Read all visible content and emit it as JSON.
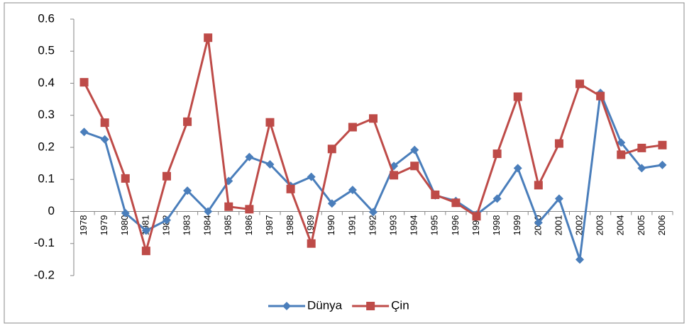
{
  "chart_data": {
    "type": "line",
    "categories": [
      "1978",
      "1979",
      "1980",
      "1981",
      "1982",
      "1983",
      "1984",
      "1985",
      "1986",
      "1987",
      "1988",
      "1989",
      "1990",
      "1991",
      "1992",
      "1993",
      "1994",
      "1995",
      "1996",
      "1997",
      "1998",
      "1999",
      "2000",
      "2001",
      "2002",
      "2003",
      "2004",
      "2005",
      "2006"
    ],
    "series": [
      {
        "name": "Dünya",
        "color": "#4a7ebb",
        "marker": "diamond",
        "values": [
          0.248,
          0.225,
          -0.005,
          -0.06,
          -0.027,
          0.065,
          0.0,
          0.095,
          0.17,
          0.147,
          0.08,
          0.108,
          0.025,
          0.067,
          -0.002,
          0.142,
          0.192,
          0.05,
          0.033,
          -0.01,
          0.04,
          0.135,
          -0.035,
          0.04,
          -0.15,
          0.37,
          0.215,
          0.135,
          0.145
        ]
      },
      {
        "name": "Çin",
        "color": "#be4b48",
        "marker": "square",
        "values": [
          0.403,
          0.277,
          0.103,
          -0.123,
          0.11,
          0.28,
          0.542,
          0.015,
          0.007,
          0.278,
          0.07,
          -0.1,
          0.195,
          0.263,
          0.29,
          0.113,
          0.142,
          0.052,
          0.027,
          -0.015,
          0.18,
          0.358,
          0.082,
          0.212,
          0.398,
          0.36,
          0.177,
          0.198,
          0.207
        ]
      }
    ],
    "ylim": [
      -0.2,
      0.6
    ],
    "yticks": [
      -0.2,
      -0.1,
      0,
      0.1,
      0.2,
      0.3,
      0.4,
      0.5,
      0.6
    ],
    "grid": false,
    "legend": "bottom"
  }
}
